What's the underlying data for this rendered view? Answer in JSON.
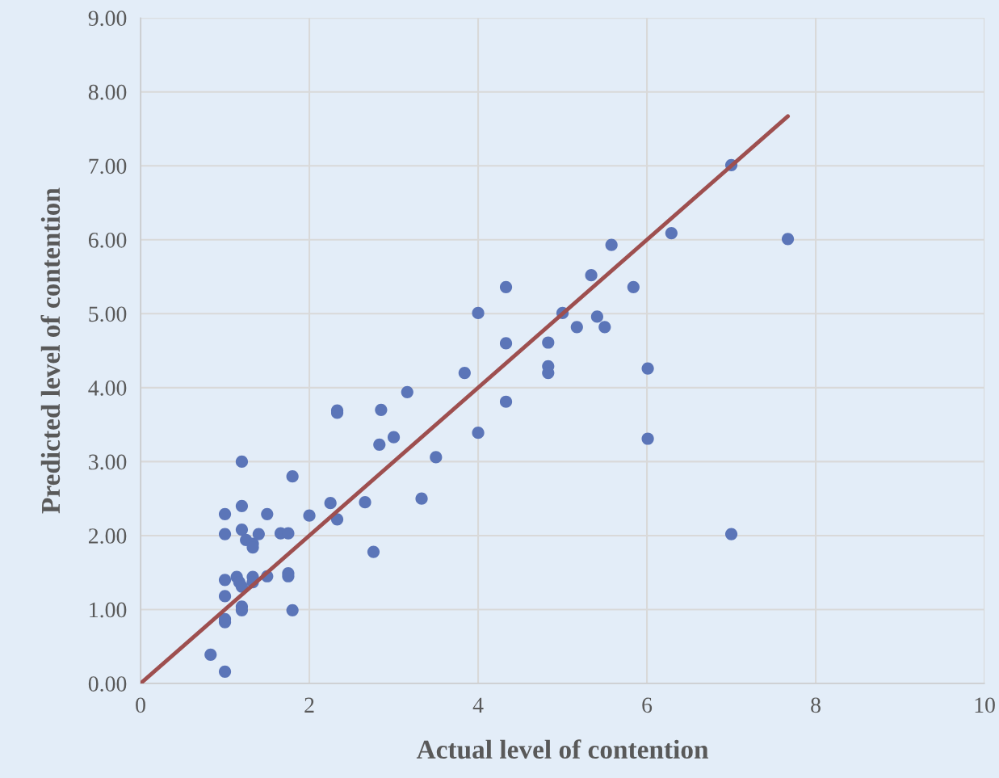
{
  "chart_data": {
    "type": "scatter",
    "xlabel": "Actual level of contention",
    "ylabel": "Predicted level of contention",
    "xlim": [
      0,
      10
    ],
    "xticks": [
      0,
      2,
      4,
      6,
      8,
      10
    ],
    "ylim": [
      0,
      9
    ],
    "yticks": [
      {
        "value": 0,
        "label": "0.00"
      },
      {
        "value": 1,
        "label": "1.00"
      },
      {
        "value": 2,
        "label": "2.00"
      },
      {
        "value": 3,
        "label": "3.00"
      },
      {
        "value": 4,
        "label": "4.00"
      },
      {
        "value": 5,
        "label": "5.00"
      },
      {
        "value": 6,
        "label": "6.00"
      },
      {
        "value": 7,
        "label": "7.00"
      },
      {
        "value": 8,
        "label": "8.00"
      },
      {
        "value": 9,
        "label": "9.00"
      }
    ],
    "grid": true,
    "marker": "circle",
    "series": [
      {
        "color": "#5b75b8",
        "x": [
          0.83,
          1.0,
          1.0,
          1.0,
          1.0,
          1.0,
          1.0,
          1.0,
          1.2,
          1.2,
          1.2,
          1.2,
          1.2,
          1.14,
          1.17,
          1.2,
          1.25,
          1.33,
          1.33,
          1.33,
          1.33,
          1.4,
          1.5,
          1.5,
          1.66,
          1.75,
          1.75,
          1.75,
          1.8,
          1.8,
          2.0,
          2.25,
          2.33,
          2.33,
          2.33,
          2.66,
          2.76,
          2.83,
          2.85,
          3.0,
          3.16,
          3.33,
          3.5,
          3.84,
          4.0,
          4.0,
          4.33,
          4.33,
          4.33,
          4.83,
          4.83,
          4.83,
          5.0,
          5.17,
          5.34,
          5.41,
          5.5,
          5.58,
          5.84,
          6.01,
          6.01,
          6.29,
          7.0,
          7.0,
          7.67
        ],
        "values": [
          0.39,
          0.16,
          0.83,
          0.87,
          1.18,
          1.4,
          2.02,
          2.29,
          3.0,
          2.4,
          2.08,
          0.99,
          1.04,
          1.44,
          1.37,
          1.31,
          1.94,
          1.89,
          1.84,
          1.44,
          1.37,
          2.02,
          2.29,
          1.45,
          2.03,
          2.03,
          1.49,
          1.45,
          2.8,
          0.99,
          2.27,
          2.44,
          2.22,
          3.69,
          3.66,
          2.45,
          1.78,
          3.23,
          3.7,
          3.33,
          3.94,
          2.5,
          3.06,
          4.2,
          5.01,
          3.39,
          5.36,
          4.6,
          3.81,
          4.61,
          4.29,
          4.2,
          5.01,
          4.82,
          5.52,
          4.96,
          4.82,
          5.93,
          5.36,
          4.26,
          3.31,
          6.09,
          7.01,
          2.02,
          6.01
        ]
      },
      {
        "type": "line",
        "color": "#9e4f4f",
        "marker": "none",
        "line_style": "solid",
        "x": [
          0,
          7.67
        ],
        "values": [
          0,
          7.67
        ]
      }
    ]
  }
}
